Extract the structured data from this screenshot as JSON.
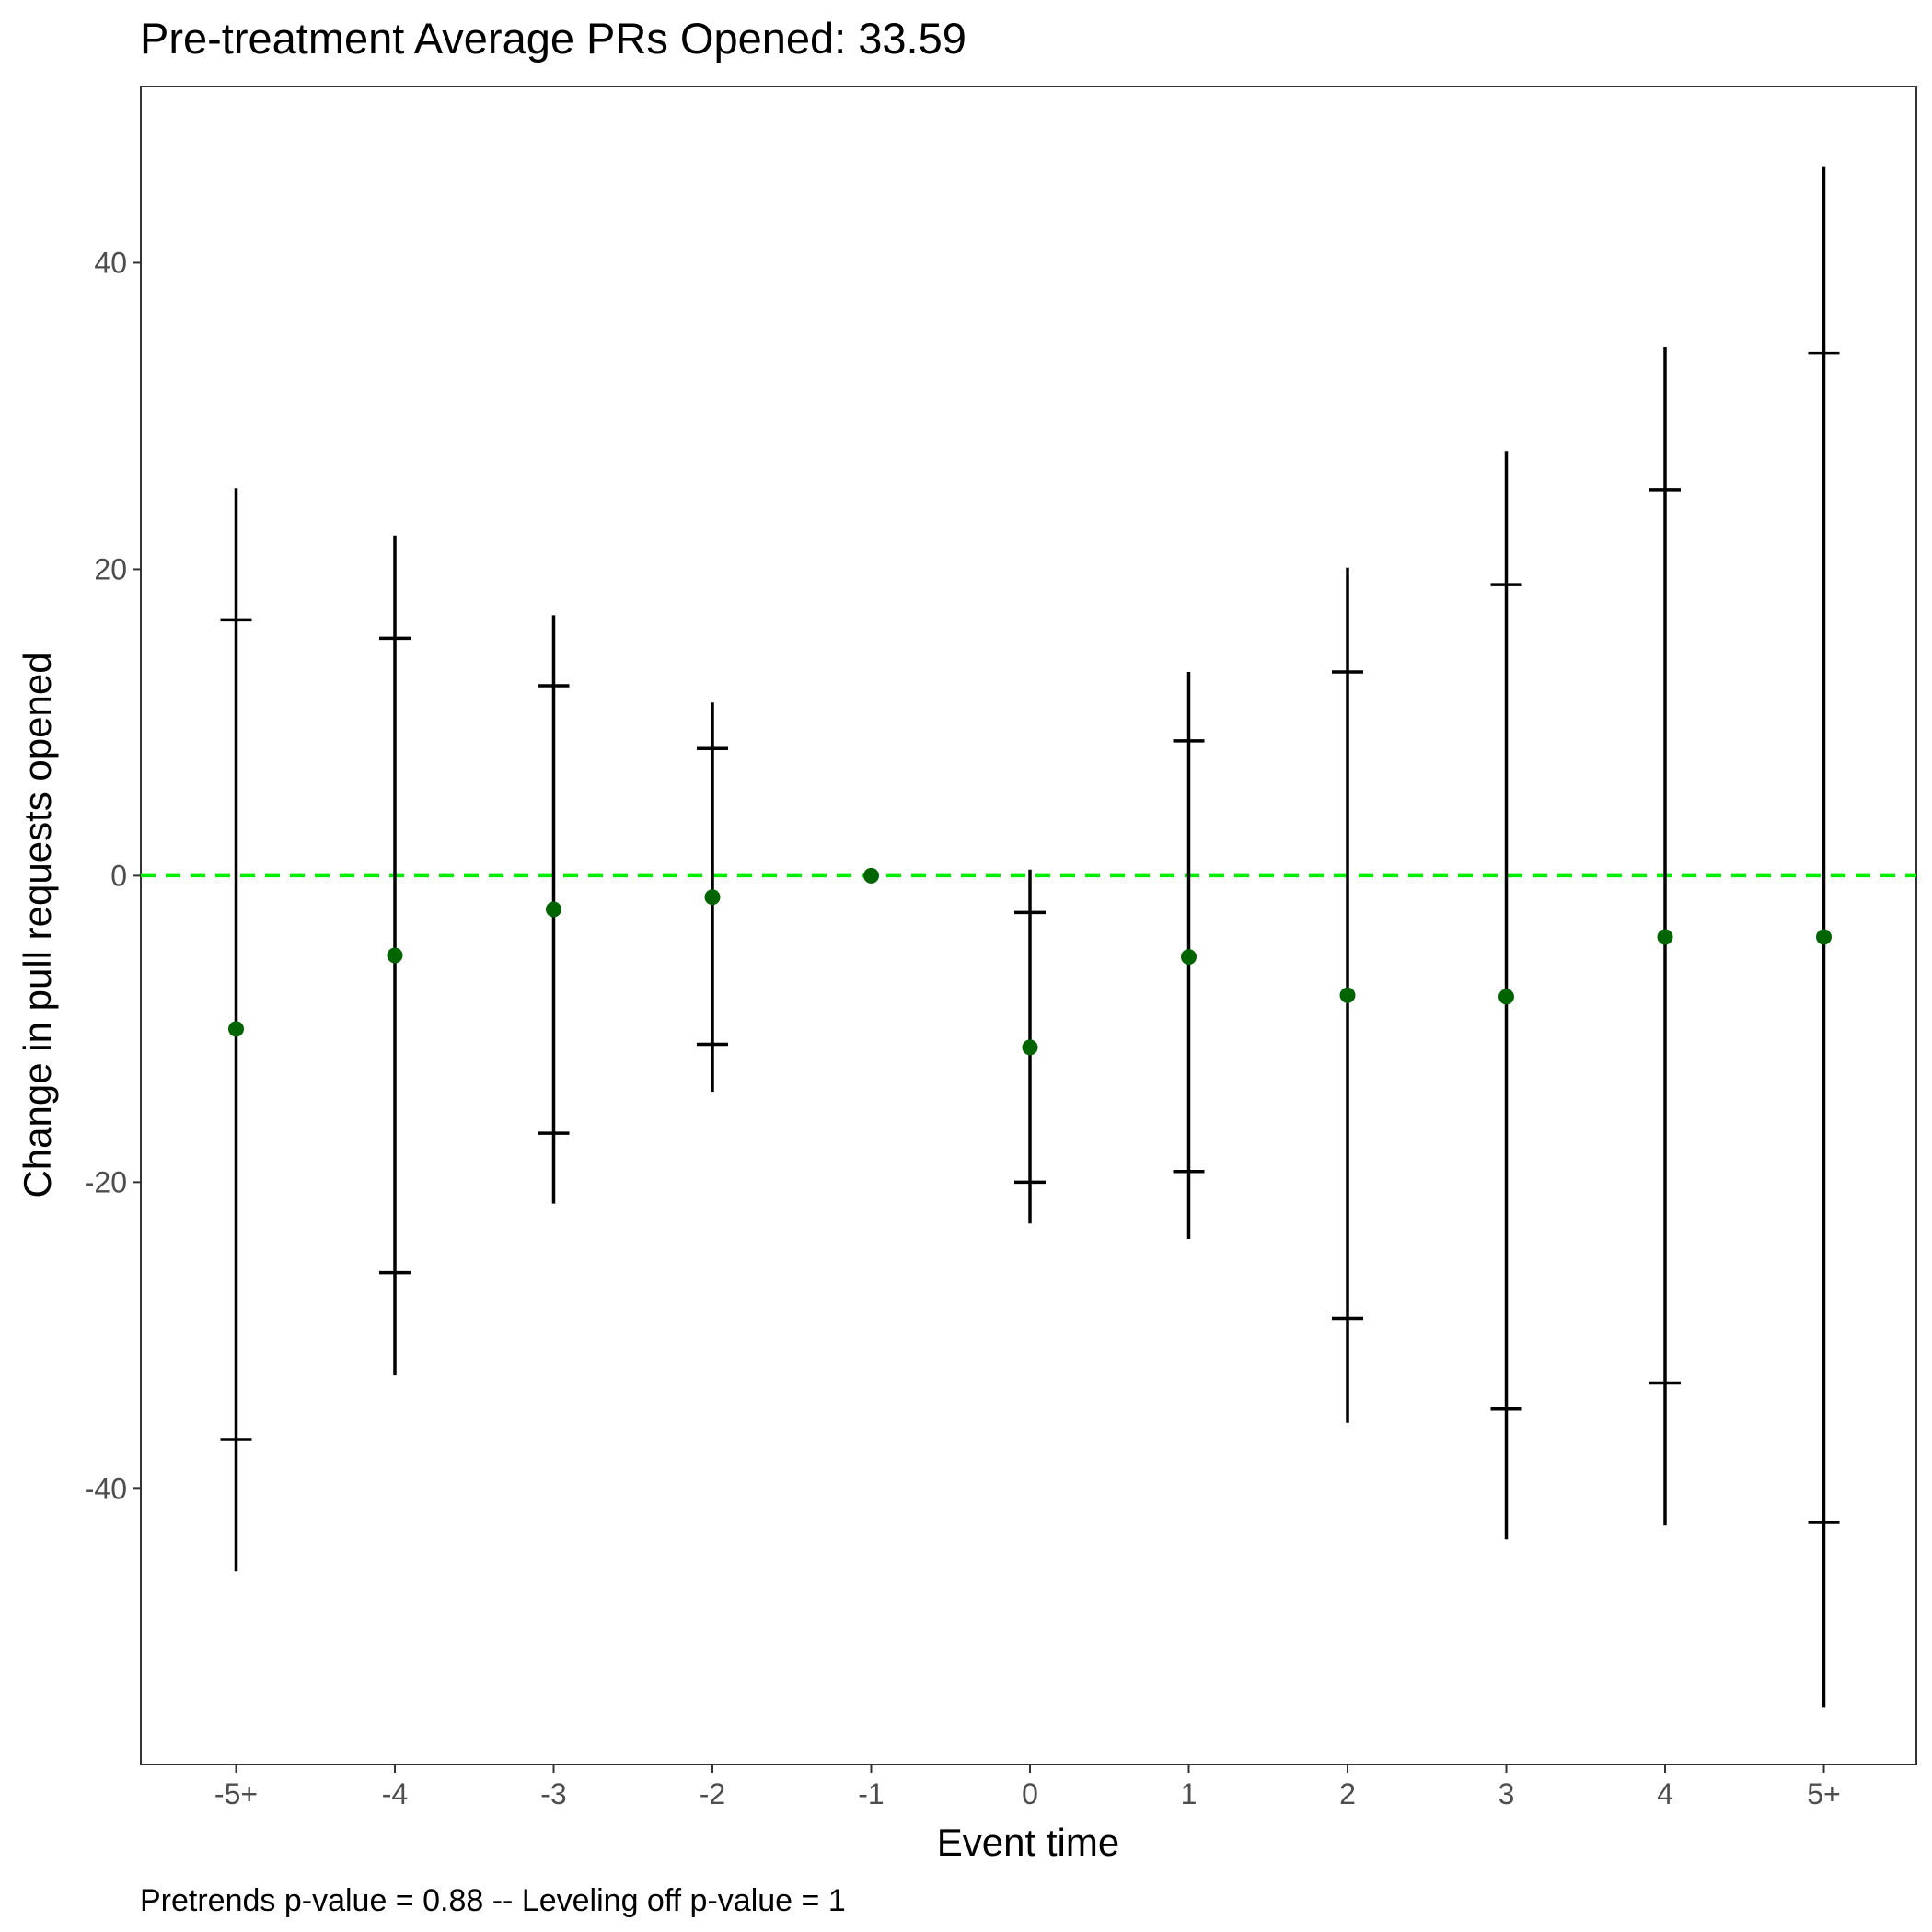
{
  "chart_data": {
    "type": "scatter",
    "title": "Pre-treatment Average PRs Opened: 33.59",
    "xlabel": "Event time",
    "ylabel": "Change in pull requests opened",
    "caption": "Pretrends p-value = 0.88 -- Leveling off p-value = 1",
    "categories": [
      "-5+",
      "-4",
      "-3",
      "-2",
      "-1",
      "0",
      "1",
      "2",
      "3",
      "4",
      "5+"
    ],
    "estimates": [
      -10.0,
      -5.2,
      -2.2,
      -1.4,
      0.0,
      -11.2,
      -5.3,
      -7.8,
      -7.9,
      -4.0,
      -4.0
    ],
    "ci_outer_lower": [
      -45.4,
      -32.6,
      -21.4,
      -14.1,
      null,
      -22.7,
      -23.7,
      -35.7,
      -43.3,
      -42.4,
      -54.3
    ],
    "ci_outer_upper": [
      25.3,
      22.2,
      17.0,
      11.3,
      null,
      0.4,
      13.3,
      20.1,
      27.7,
      34.5,
      46.3
    ],
    "ci_inner_lower": [
      -36.8,
      -25.9,
      -16.8,
      -11.0,
      null,
      -20.0,
      -19.3,
      -28.9,
      -34.8,
      -33.1,
      -42.2
    ],
    "ci_inner_upper": [
      16.7,
      15.5,
      12.4,
      8.3,
      null,
      -2.4,
      8.8,
      13.3,
      19.0,
      25.2,
      34.1
    ],
    "reference_line": 0,
    "ylim": [
      -58.0,
      51.5
    ],
    "yticks": [
      -40,
      -20,
      0,
      20,
      40
    ],
    "grid": false,
    "colors": {
      "point": "#006400",
      "errorbar": "#000000",
      "reference": "#00ee00",
      "tick_label": "#4d4d4d",
      "panel_border": "#333333"
    }
  }
}
